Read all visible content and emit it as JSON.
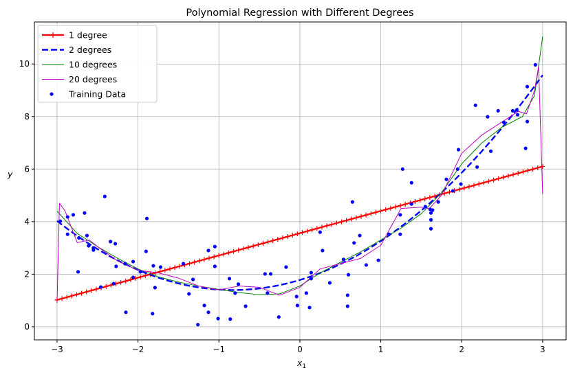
{
  "chart_data": {
    "type": "line",
    "title": "Polynomial Regression with Different Degrees",
    "xlabel": "x",
    "xlabel_sub": "1",
    "ylabel": "y",
    "xlim": [
      -3.28,
      3.29
    ],
    "ylim": [
      -0.5,
      11.6
    ],
    "xticks": [
      -3,
      -2,
      -1,
      0,
      1,
      2,
      3
    ],
    "xtick_labels": [
      "−3",
      "−2",
      "−1",
      "0",
      "1",
      "2",
      "3"
    ],
    "yticks": [
      0,
      2,
      4,
      6,
      8,
      10
    ],
    "ytick_labels": [
      "0",
      "2",
      "4",
      "6",
      "8",
      "10"
    ],
    "grid": true,
    "legend_position": "top-left",
    "series": [
      {
        "name": "1 degree",
        "color": "#ff0000",
        "style": "solid-plus-markers",
        "x": [
          -3,
          3
        ],
        "y": [
          1.02,
          6.1
        ]
      },
      {
        "name": "2 degrees",
        "color": "#0000ff",
        "style": "dashed",
        "coefficients": {
          "a": 0.558,
          "b": 0.925,
          "c": 1.78
        }
      },
      {
        "name": "10 degrees",
        "color": "#008000",
        "style": "thin",
        "x": [
          -3,
          -2.75,
          -2.5,
          -2.25,
          -2,
          -1.75,
          -1.5,
          -1.25,
          -1,
          -0.75,
          -0.5,
          -0.25,
          0,
          0.25,
          0.5,
          0.75,
          1,
          1.25,
          1.5,
          1.75,
          2,
          2.25,
          2.5,
          2.75,
          2.9,
          3
        ],
        "y": [
          4.4,
          3.55,
          3.05,
          2.6,
          2.2,
          1.9,
          1.7,
          1.55,
          1.42,
          1.3,
          1.22,
          1.25,
          1.55,
          2.05,
          2.45,
          2.85,
          3.3,
          3.75,
          4.3,
          5.1,
          6.2,
          7.0,
          7.6,
          8.0,
          8.8,
          11.05
        ]
      },
      {
        "name": "20 degrees",
        "color": "#c000c0",
        "style": "thin",
        "x": [
          -3,
          -2.97,
          -2.9,
          -2.75,
          -2.6,
          -2.5,
          -2.25,
          -2,
          -1.75,
          -1.5,
          -1.25,
          -1,
          -0.75,
          -0.5,
          -0.25,
          0,
          0.25,
          0.5,
          0.75,
          1,
          1.25,
          1.5,
          1.6,
          1.75,
          2,
          2.25,
          2.5,
          2.7,
          2.8,
          2.9,
          2.95,
          3
        ],
        "y": [
          0.9,
          4.7,
          4.4,
          3.2,
          3.3,
          3.05,
          2.5,
          2.15,
          2.05,
          1.85,
          1.55,
          1.4,
          1.55,
          1.5,
          1.2,
          1.5,
          2.2,
          2.4,
          2.6,
          3.1,
          4.5,
          4.55,
          4.5,
          5.0,
          6.6,
          7.3,
          7.8,
          8.2,
          8.1,
          9.0,
          9.9,
          5.05
        ]
      },
      {
        "name": "Training Data",
        "color": "#0000ff",
        "style": "points",
        "x": [
          -2.96,
          -2.87,
          -2.87,
          -2.8,
          -2.73,
          -2.74,
          -2.66,
          -2.63,
          -2.61,
          -2.55,
          -2.55,
          -2.46,
          -2.41,
          -2.34,
          -2.28,
          -2.27,
          -2.3,
          -2.16,
          -2.15,
          -2.06,
          -2.06,
          -1.97,
          -1.89,
          -1.9,
          -1.81,
          -1.79,
          -1.82,
          -1.72,
          -1.44,
          -1.37,
          -1.32,
          -1.26,
          -1.18,
          -1.13,
          -1.13,
          -1.05,
          -1.05,
          -1.01,
          -0.87,
          -0.86,
          -0.8,
          -0.76,
          -0.67,
          -0.43,
          -0.36,
          -0.4,
          -0.26,
          -0.17,
          -0.04,
          -0.03,
          0.08,
          0.12,
          0.14,
          0.14,
          0.25,
          0.28,
          0.37,
          0.54,
          0.59,
          0.59,
          0.6,
          0.65,
          0.67,
          0.74,
          0.82,
          0.97,
          1.1,
          1.24,
          1.24,
          1.27,
          1.38,
          1.38,
          1.55,
          1.61,
          1.62,
          1.62,
          1.62,
          1.64,
          1.71,
          1.81,
          1.89,
          1.95,
          1.96,
          1.99,
          2.17,
          2.19,
          2.32,
          2.36,
          2.45,
          2.52,
          2.63,
          2.68,
          2.69,
          2.79,
          2.81,
          2.81,
          2.91
        ],
        "y": [
          4.02,
          4.18,
          3.52,
          4.26,
          3.38,
          2.09,
          4.33,
          3.47,
          3.08,
          3.0,
          2.92,
          1.51,
          4.96,
          3.24,
          3.16,
          2.3,
          1.64,
          2.4,
          0.55,
          2.48,
          1.88,
          2.09,
          4.12,
          2.87,
          2.32,
          1.49,
          0.5,
          2.27,
          2.4,
          1.25,
          1.8,
          0.08,
          0.81,
          2.9,
          0.55,
          3.05,
          2.3,
          0.31,
          1.83,
          0.29,
          1.28,
          1.62,
          0.78,
          2.01,
          2.01,
          1.28,
          0.37,
          2.27,
          1.15,
          0.81,
          1.28,
          0.73,
          2.06,
          1.83,
          3.6,
          2.9,
          1.67,
          2.56,
          1.2,
          0.78,
          1.98,
          4.75,
          3.19,
          3.47,
          2.35,
          2.53,
          3.52,
          4.26,
          3.52,
          6.0,
          5.48,
          4.67,
          4.57,
          4.47,
          4.33,
          4.07,
          3.73,
          4.44,
          4.75,
          5.61,
          5.17,
          6.0,
          6.74,
          5.43,
          8.43,
          6.08,
          7.99,
          6.68,
          8.22,
          7.78,
          8.22,
          8.25,
          8.07,
          6.79,
          9.14,
          7.81,
          9.97
        ]
      }
    ]
  }
}
